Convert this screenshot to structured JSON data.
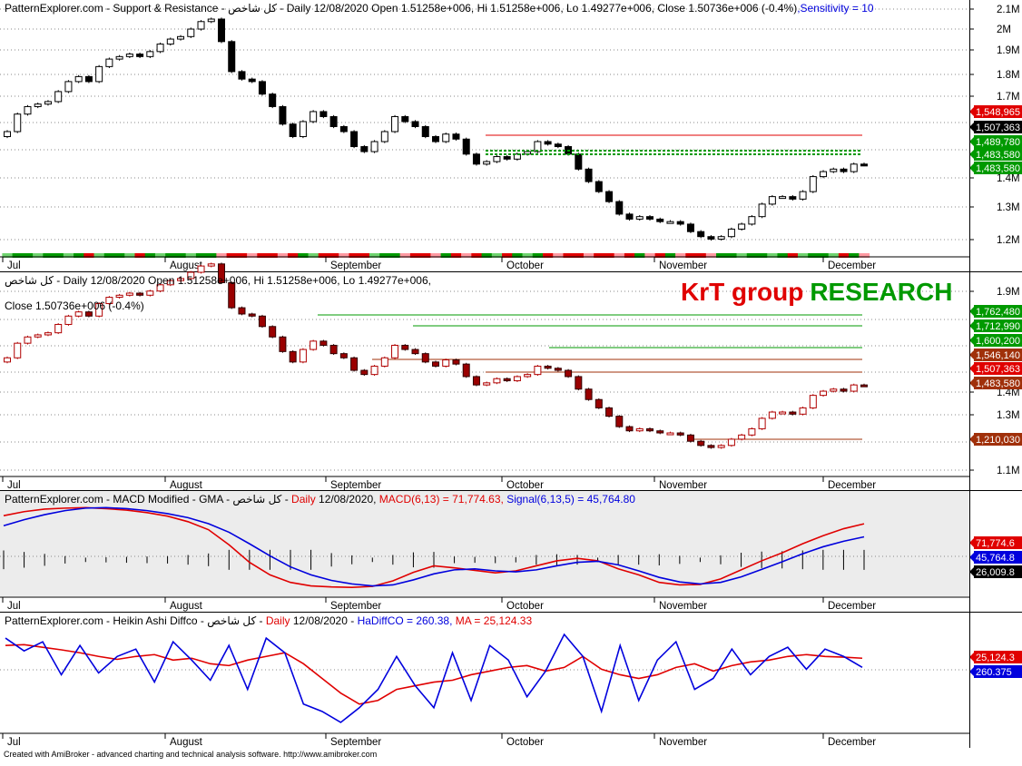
{
  "months": [
    "Jul",
    "August",
    "September",
    "October",
    "November",
    "December"
  ],
  "footer": "Created with AmiBroker - advanced charting and technical analysis software. http://www.amibroker.com",
  "colors": {
    "pane_bg": "#ffffff",
    "pane2_bg": "#ececec",
    "grid": "#8a8a8a",
    "red": "#e00000",
    "blue": "#0000dd",
    "green": "#009900",
    "dark_red": "#7a0000",
    "brown": "#a0300a"
  },
  "panels": {
    "sr": {
      "title": {
        "prefix": "PatternExplorer.com - Support & Resistance - كل شاخص - Daily 12/08/2020 Open 1.51258e+006, Hi 1.51258e+006, Lo 1.49277e+006, Close 1.50736e+006 (-0.4%)",
        "sensitivity": ",Sensitivity = 10"
      },
      "y_ticks": [
        "2.1M",
        "2M",
        "1.9M",
        "1.8M",
        "1.7M",
        "1.4M",
        "1.3M",
        "1.2M"
      ],
      "value_labels": [
        {
          "text": "1,548,965",
          "bg": "#e00000",
          "fg": "#ffffff"
        },
        {
          "text": "1,507,363",
          "bg": "#000000",
          "fg": "#ffffff"
        },
        {
          "text": "1,489,780",
          "bg": "#009900",
          "fg": "#ffffff"
        },
        {
          "text": "1,483,580",
          "bg": "#009900",
          "fg": "#ffffff"
        },
        {
          "text": "1,483,580",
          "bg": "#009900",
          "fg": "#ffffff"
        }
      ]
    },
    "levels": {
      "title_line1": "كل شاخص - Daily 12/08/2020 Open 1.51258e+006, Hi 1.51258e+006, Lo 1.49277e+006,",
      "title_line2": "Close 1.50736e+006 (-0.4%)",
      "watermark": {
        "part1": "KrT group",
        "part2": "RESEARCH"
      },
      "y_ticks": [
        "1.9M",
        "1.4M",
        "1.3M",
        "1.1M"
      ],
      "value_labels": [
        {
          "text": "1,762,480",
          "bg": "#009900",
          "fg": "#ffffff"
        },
        {
          "text": "1,712,990",
          "bg": "#009900",
          "fg": "#ffffff"
        },
        {
          "text": "1,600,200",
          "bg": "#009900",
          "fg": "#ffffff"
        },
        {
          "text": "1,546,140",
          "bg": "#a0300a",
          "fg": "#ffffff"
        },
        {
          "text": "1,507,363",
          "bg": "#e00000",
          "fg": "#ffffff"
        },
        {
          "text": "1,483,580",
          "bg": "#a0300a",
          "fg": "#ffffff"
        },
        {
          "text": "1,210,030",
          "bg": "#a0300a",
          "fg": "#ffffff"
        }
      ]
    },
    "macd": {
      "title": {
        "prefix": "PatternExplorer.com - MACD Modified  - GMA - كل شاخص - ",
        "daily": "Daily",
        "date": " 12/08/2020, ",
        "macd": "MACD(6,13) = 71,774.63, ",
        "signal": "Signal(6,13,5) = 45,764.80"
      },
      "value_labels": [
        {
          "text": "71,774.6",
          "bg": "#e00000",
          "fg": "#ffffff"
        },
        {
          "text": "45,764.8",
          "bg": "#0000dd",
          "fg": "#ffffff"
        },
        {
          "text": "26,009.8",
          "bg": "#000000",
          "fg": "#ffffff"
        }
      ]
    },
    "heikin": {
      "title": {
        "prefix": "PatternExplorer.com - Heikin Ashi Diffco - كل شاخص - ",
        "daily": "Daily",
        "date": "  12/08/2020 - ",
        "hadiff": "HaDiffCO = 260.38, ",
        "ma": "MA = 25,124.33"
      },
      "value_labels": [
        {
          "text": "25,124.3",
          "bg": "#e00000",
          "fg": "#ffffff"
        },
        {
          "text": "260.375",
          "bg": "#0000dd",
          "fg": "#ffffff"
        }
      ]
    }
  },
  "chart_data": [
    {
      "type": "candlestick",
      "title": "PatternExplorer.com - Support & Resistance - كل شاخص - Daily 12/08/2020",
      "y_unit": "M",
      "ylim": [
        1.15,
        2.13
      ],
      "close": [
        1.64,
        1.71,
        1.74,
        1.75,
        1.76,
        1.8,
        1.84,
        1.86,
        1.84,
        1.9,
        1.93,
        1.94,
        1.95,
        1.94,
        1.96,
        1.99,
        2.01,
        2.02,
        2.05,
        2.08,
        2.09,
        2.0,
        1.88,
        1.85,
        1.84,
        1.79,
        1.74,
        1.67,
        1.62,
        1.68,
        1.72,
        1.7,
        1.66,
        1.64,
        1.58,
        1.56,
        1.6,
        1.64,
        1.7,
        1.68,
        1.66,
        1.62,
        1.6,
        1.63,
        1.61,
        1.55,
        1.51,
        1.52,
        1.54,
        1.53,
        1.55,
        1.56,
        1.6,
        1.59,
        1.58,
        1.55,
        1.49,
        1.44,
        1.4,
        1.36,
        1.31,
        1.29,
        1.3,
        1.29,
        1.28,
        1.28,
        1.27,
        1.24,
        1.22,
        1.21,
        1.22,
        1.25,
        1.27,
        1.3,
        1.35,
        1.38,
        1.38,
        1.37,
        1.4,
        1.46,
        1.48,
        1.49,
        1.48,
        1.51,
        1.5074
      ],
      "open_close_color": "white candle = up, black candle = down"
    },
    {
      "type": "line",
      "title": "MACD Modified - GMA",
      "series": [
        {
          "name": "MACD(6,13)",
          "values": [
            88000,
            96000,
            101000,
            103000,
            104000,
            102000,
            99000,
            94000,
            87000,
            76000,
            60000,
            30000,
            -5000,
            -30000,
            -45000,
            -52000,
            -54000,
            -55000,
            -53000,
            -42000,
            -25000,
            -12000,
            -16000,
            -21000,
            -26000,
            -22000,
            -12000,
            -2000,
            3000,
            -2000,
            -18000,
            -30000,
            -45000,
            -50000,
            -49000,
            -38000,
            -20000,
            -2000,
            14000,
            32000,
            48000,
            62000,
            71775
          ],
          "color": "#e00000"
        },
        {
          "name": "Signal(6,13,5)",
          "values": [
            68000,
            80000,
            90000,
            98000,
            103000,
            104000,
            102000,
            98000,
            92000,
            84000,
            72000,
            55000,
            32000,
            8000,
            -14000,
            -30000,
            -41000,
            -48000,
            -52000,
            -50000,
            -40000,
            -28000,
            -20000,
            -18000,
            -22000,
            -24000,
            -20000,
            -12000,
            -5000,
            -3000,
            -10000,
            -22000,
            -35000,
            -44000,
            -48000,
            -45000,
            -34000,
            -19000,
            -4000,
            12000,
            26000,
            37000,
            45765
          ],
          "color": "#0000dd"
        }
      ],
      "histogram_last": 26009.8
    },
    {
      "type": "line",
      "title": "Heikin Ashi Diffco",
      "series": [
        {
          "name": "HaDiffCO",
          "values": [
            80000,
            45000,
            70000,
            -20000,
            60000,
            -15000,
            30000,
            50000,
            -40000,
            70000,
            20000,
            -35000,
            60000,
            -60000,
            80000,
            40000,
            -100000,
            -120000,
            -150000,
            -110000,
            -60000,
            30000,
            -50000,
            -110000,
            40000,
            -90000,
            60000,
            20000,
            -80000,
            -10000,
            90000,
            30000,
            -120000,
            60000,
            -90000,
            20000,
            70000,
            -60000,
            -30000,
            50000,
            -20000,
            30000,
            55000,
            -5000,
            50000,
            30000,
            260.375
          ],
          "color": "#0000dd"
        },
        {
          "name": "MA",
          "values": [
            60000,
            62000,
            55000,
            48000,
            40000,
            30000,
            22000,
            30000,
            35000,
            20000,
            25000,
            10000,
            5000,
            20000,
            30000,
            40000,
            10000,
            -30000,
            -70000,
            -100000,
            -90000,
            -60000,
            -50000,
            -40000,
            -35000,
            -20000,
            -10000,
            0,
            5000,
            -10000,
            0,
            30000,
            -5000,
            -20000,
            -30000,
            -20000,
            0,
            10000,
            -10000,
            5000,
            15000,
            20000,
            30000,
            35000,
            30000,
            28000,
            25124.33
          ],
          "color": "#e00000"
        }
      ]
    }
  ]
}
